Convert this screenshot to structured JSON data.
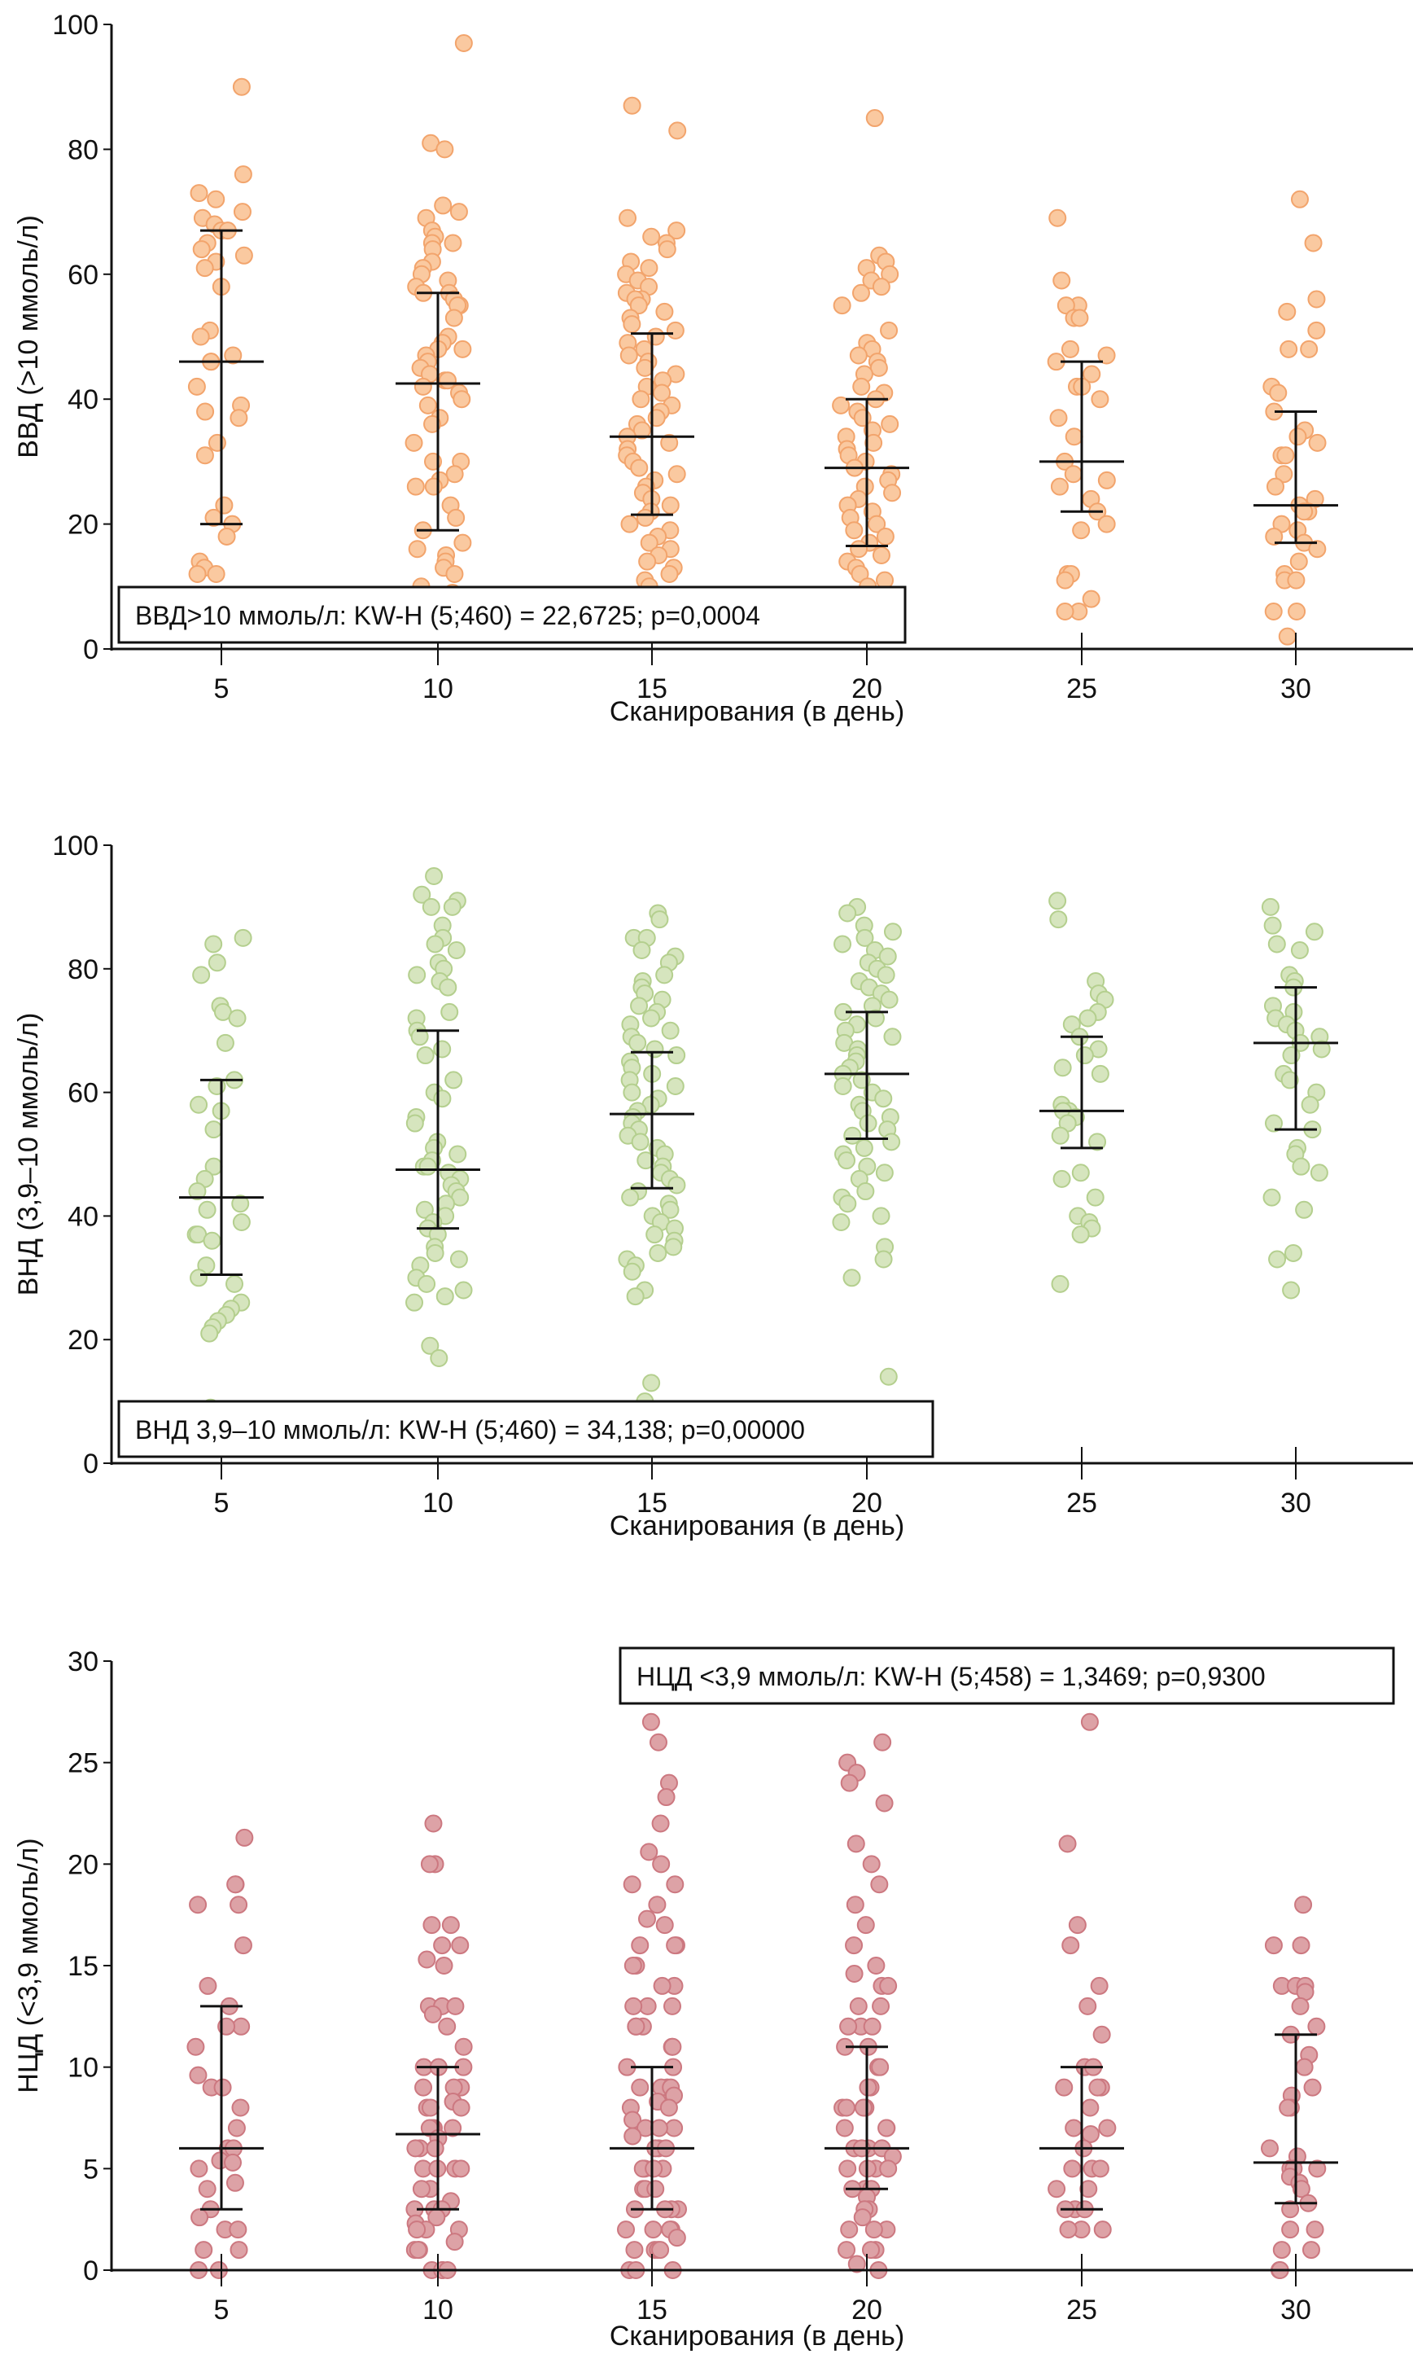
{
  "chart_data": [
    {
      "type": "scatter",
      "subtype": "dot-plot with median and interquartile range",
      "title": "",
      "xlabel": "Сканирования (в день)",
      "ylabel": "ВВД (>10 ммоль/л)",
      "ylim": [
        0,
        100
      ],
      "yticks": [
        0,
        20,
        40,
        60,
        80,
        100
      ],
      "categories": [
        "5",
        "10",
        "15",
        "20",
        "25",
        "30"
      ],
      "color": {
        "fill": "#FAC9A0",
        "stroke": "#F2A46C"
      },
      "annotation": {
        "text": "ВВД>10 ммоль/л: KW-H (5;460) = 22,6725; p=0,0004",
        "position": "bottom-left"
      },
      "summary": [
        {
          "category": "5",
          "median": 46,
          "q1": 20,
          "q3": 67
        },
        {
          "category": "10",
          "median": 42.5,
          "q1": 19,
          "q3": 57
        },
        {
          "category": "15",
          "median": 34,
          "q1": 21.5,
          "q3": 50.5
        },
        {
          "category": "20",
          "median": 29,
          "q1": 16.5,
          "q3": 40
        },
        {
          "category": "25",
          "median": 30,
          "q1": 22,
          "q3": 46
        },
        {
          "category": "30",
          "median": 23,
          "q1": 17,
          "q3": 38
        }
      ],
      "points": {
        "5": [
          90,
          76,
          73,
          72,
          70,
          69,
          68,
          67,
          67,
          65,
          64,
          63,
          62,
          61,
          58,
          51,
          50,
          47,
          46,
          46,
          42,
          39,
          38,
          37,
          33,
          31,
          23,
          21,
          20,
          18,
          14,
          13,
          12,
          12
        ],
        "10": [
          97,
          81,
          80,
          71,
          70,
          69,
          67,
          66,
          65,
          65,
          64,
          62,
          61,
          60,
          59,
          58,
          57,
          57,
          56,
          55,
          55,
          53,
          50,
          49,
          48,
          48,
          47,
          46,
          45,
          44,
          43,
          43,
          42,
          41,
          40,
          39,
          37,
          36,
          33,
          30,
          30,
          28,
          27,
          26,
          26,
          23,
          21,
          19,
          17,
          16,
          15,
          14,
          13,
          12,
          10,
          9
        ],
        "15": [
          87,
          83,
          69,
          67,
          66,
          65,
          64,
          62,
          61,
          60,
          59,
          58,
          57,
          56,
          56,
          55,
          54,
          53,
          52,
          51,
          50,
          49,
          48,
          47,
          46,
          45,
          44,
          43,
          42,
          41,
          40,
          39,
          38,
          37,
          36,
          35,
          34,
          33,
          32,
          31,
          30,
          29,
          28,
          27,
          26,
          25,
          24,
          23,
          22,
          21,
          20,
          19,
          18,
          17,
          16,
          15,
          14,
          13,
          12,
          11,
          10
        ],
        "20": [
          85,
          63,
          62,
          61,
          60,
          59,
          58,
          57,
          55,
          51,
          49,
          48,
          47,
          46,
          45,
          44,
          42,
          41,
          40,
          39,
          38,
          37,
          36,
          35,
          34,
          33,
          32,
          31,
          30,
          29,
          28,
          27,
          26,
          25,
          24,
          23,
          22,
          21,
          20,
          19,
          18,
          17,
          16,
          15,
          14,
          13,
          12,
          11,
          10
        ],
        "25": [
          69,
          59,
          55,
          55,
          53,
          53,
          48,
          47,
          46,
          44,
          42,
          42,
          40,
          37,
          34,
          30,
          28,
          27,
          26,
          24,
          22,
          20,
          19,
          12,
          12,
          11,
          8,
          6,
          6
        ],
        "30": [
          72,
          65,
          56,
          54,
          51,
          48,
          48,
          42,
          41,
          38,
          35,
          34,
          33,
          31,
          31,
          28,
          26,
          24,
          23,
          22,
          22,
          20,
          19,
          18,
          17,
          16,
          14,
          12,
          11,
          11,
          6,
          6,
          2
        ]
      }
    },
    {
      "type": "scatter",
      "subtype": "dot-plot with median and interquartile range",
      "title": "",
      "xlabel": "Сканирования (в день)",
      "ylabel": "ВНД (3,9–10 ммоль/л)",
      "ylim": [
        0,
        100
      ],
      "yticks": [
        0,
        20,
        40,
        60,
        80,
        100
      ],
      "categories": [
        "5",
        "10",
        "15",
        "20",
        "25",
        "30"
      ],
      "color": {
        "fill": "#D6E5BE",
        "stroke": "#B4CF8E"
      },
      "annotation": {
        "text": "ВНД 3,9–10 ммоль/л: KW-H (5;460) = 34,138; p=0,00000",
        "position": "bottom-left"
      },
      "summary": [
        {
          "category": "5",
          "median": 43,
          "q1": 30.5,
          "q3": 62
        },
        {
          "category": "10",
          "median": 47.5,
          "q1": 38,
          "q3": 70
        },
        {
          "category": "15",
          "median": 56.5,
          "q1": 44.5,
          "q3": 66.5
        },
        {
          "category": "20",
          "median": 63,
          "q1": 52.5,
          "q3": 73
        },
        {
          "category": "25",
          "median": 57,
          "q1": 51,
          "q3": 69
        },
        {
          "category": "30",
          "median": 68,
          "q1": 54,
          "q3": 77
        }
      ],
      "points": {
        "5": [
          85,
          84,
          81,
          79,
          74,
          73,
          72,
          68,
          62,
          61,
          58,
          57,
          54,
          48,
          46,
          44,
          42,
          41,
          39,
          37,
          37,
          36,
          32,
          30,
          29,
          26,
          25,
          24,
          23,
          22,
          21,
          9
        ],
        "10": [
          95,
          92,
          91,
          90,
          90,
          87,
          85,
          84,
          83,
          81,
          80,
          79,
          78,
          77,
          73,
          72,
          70,
          69,
          67,
          66,
          62,
          60,
          59,
          56,
          55,
          52,
          51,
          50,
          49,
          48,
          48,
          47,
          46,
          45,
          44,
          43,
          42,
          41,
          40,
          39,
          38,
          37,
          35,
          34,
          33,
          32,
          30,
          29,
          28,
          27,
          26,
          19,
          17
        ],
        "15": [
          89,
          88,
          85,
          85,
          83,
          82,
          81,
          79,
          78,
          77,
          76,
          75,
          74,
          73,
          72,
          71,
          70,
          69,
          68,
          67,
          66,
          65,
          64,
          63,
          62,
          61,
          60,
          59,
          58,
          57,
          56,
          55,
          54,
          53,
          52,
          51,
          50,
          49,
          48,
          47,
          46,
          45,
          44,
          43,
          42,
          41,
          40,
          39,
          38,
          37,
          36,
          35,
          34,
          33,
          32,
          31,
          28,
          27,
          13,
          10
        ],
        "20": [
          90,
          89,
          87,
          86,
          85,
          84,
          83,
          82,
          81,
          80,
          79,
          78,
          77,
          76,
          75,
          74,
          73,
          72,
          71,
          70,
          69,
          68,
          67,
          66,
          65,
          64,
          63,
          62,
          61,
          60,
          59,
          58,
          57,
          56,
          55,
          54,
          53,
          52,
          51,
          50,
          49,
          48,
          47,
          46,
          44,
          43,
          42,
          40,
          39,
          35,
          33,
          30,
          14
        ],
        "25": [
          91,
          88,
          78,
          76,
          75,
          73,
          72,
          71,
          69,
          67,
          66,
          64,
          63,
          58,
          57,
          57,
          56,
          55,
          53,
          52,
          47,
          46,
          43,
          40,
          39,
          38,
          37,
          29
        ],
        "30": [
          90,
          87,
          86,
          84,
          83,
          79,
          78,
          77,
          74,
          73,
          72,
          71,
          70,
          69,
          68,
          67,
          66,
          63,
          62,
          60,
          58,
          55,
          54,
          51,
          50,
          48,
          47,
          43,
          41,
          34,
          33,
          28
        ]
      }
    },
    {
      "type": "scatter",
      "subtype": "dot-plot with median and interquartile range",
      "title": "",
      "xlabel": "Сканирования (в день)",
      "ylabel": "НЦД (<3,9 ммоль/л)",
      "ylim": [
        0,
        30
      ],
      "yticks": [
        0,
        5,
        10,
        15,
        20,
        25,
        30
      ],
      "categories": [
        "5",
        "10",
        "15",
        "20",
        "25",
        "30"
      ],
      "color": {
        "fill": "#DDA2A6",
        "stroke": "#CC7880"
      },
      "annotation": {
        "text": "НЦД <3,9 ммоль/л: KW-H (5;458) = 1,3469; p=0,9300",
        "position": "top-right"
      },
      "summary": [
        {
          "category": "5",
          "median": 6,
          "q1": 3,
          "q3": 13
        },
        {
          "category": "10",
          "median": 6.7,
          "q1": 3,
          "q3": 10
        },
        {
          "category": "15",
          "median": 6,
          "q1": 3,
          "q3": 10
        },
        {
          "category": "20",
          "median": 6,
          "q1": 4,
          "q3": 11
        },
        {
          "category": "25",
          "median": 6,
          "q1": 3,
          "q3": 10
        },
        {
          "category": "30",
          "median": 5.3,
          "q1": 3.3,
          "q3": 11.6
        }
      ],
      "points": {
        "5": [
          21.3,
          19,
          19,
          18,
          18,
          16,
          14,
          13,
          12,
          12,
          11,
          9.6,
          9,
          9,
          8,
          7,
          6,
          6,
          5.4,
          5.3,
          5,
          4.3,
          4,
          3,
          2.6,
          2,
          2,
          1,
          1,
          0,
          0
        ],
        "10": [
          22,
          20,
          20,
          17,
          17,
          16,
          16,
          15.3,
          15,
          13,
          13,
          13,
          12.6,
          12,
          11,
          10,
          10,
          10,
          9,
          9,
          9,
          8.3,
          8,
          8,
          8,
          7,
          7,
          7,
          7,
          6.5,
          6,
          6,
          6,
          5,
          5,
          5,
          5,
          4,
          4,
          3.4,
          3,
          3,
          3,
          2.6,
          2.3,
          2,
          2,
          2,
          1.4,
          1,
          1,
          1,
          0,
          0,
          0,
          0
        ],
        "15": [
          27,
          26,
          24,
          23.3,
          22,
          20.6,
          20,
          19,
          19,
          18,
          17.3,
          17,
          16,
          16,
          16,
          15,
          15,
          14,
          14,
          13,
          13,
          13,
          12,
          12,
          12,
          11,
          11,
          10,
          10,
          9,
          9,
          9,
          9,
          8.6,
          8.3,
          8,
          8,
          7.4,
          7,
          7,
          7,
          6.6,
          6,
          6,
          6,
          5,
          5,
          5,
          5,
          4,
          4,
          4,
          3,
          3,
          3,
          3,
          2,
          2,
          2,
          2,
          1.6,
          1,
          1,
          1,
          1,
          0,
          0,
          0
        ],
        "20": [
          26,
          25,
          24.5,
          24,
          23,
          21,
          20,
          19,
          18,
          17,
          16,
          15,
          14.6,
          14,
          14,
          13,
          13,
          12,
          12,
          12,
          11,
          11,
          10,
          10,
          9,
          9,
          8,
          8,
          8,
          8,
          7,
          7,
          7,
          6,
          6,
          6,
          6,
          5.6,
          5,
          5,
          5,
          5,
          4,
          4,
          4,
          3.6,
          3,
          3,
          2.6,
          2,
          2,
          2,
          1,
          1,
          1,
          0.3,
          0
        ],
        "25": [
          27,
          21,
          17,
          16,
          14,
          13,
          11.6,
          10,
          10,
          9,
          9,
          9,
          8,
          7,
          7,
          6.7,
          6,
          5,
          5,
          5,
          4,
          4,
          3,
          3,
          3,
          2,
          2,
          2
        ],
        "30": [
          18,
          16,
          16,
          14,
          14,
          14,
          13.7,
          13,
          12,
          11.6,
          10.6,
          10,
          9,
          8.6,
          8,
          8,
          6,
          5.6,
          5,
          5,
          5,
          4.6,
          4.3,
          4,
          3.3,
          3,
          2,
          2,
          1,
          1,
          0,
          0
        ]
      }
    }
  ]
}
